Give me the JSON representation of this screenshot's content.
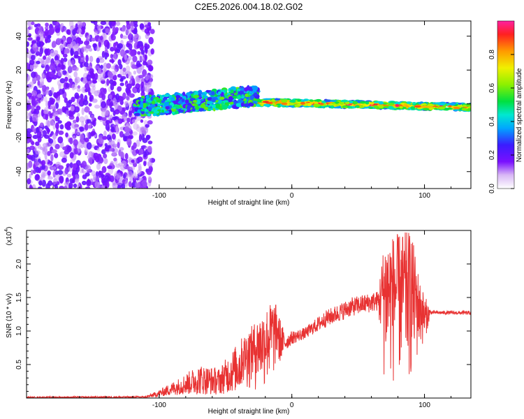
{
  "title": "C2E5.2026.004.18.02.G02",
  "colors": {
    "snr_line": "#e83232",
    "scatter_violet": "#6a00e8",
    "background": "#ffffff",
    "axis": "#000000"
  },
  "chart_data": [
    {
      "type": "heatmap",
      "xlabel": "Height of straight line (km)",
      "ylabel": "Frequency (Hz)",
      "xlim": [
        -200,
        135
      ],
      "ylim": [
        -50,
        49
      ],
      "x_ticks": [
        -100,
        0,
        100
      ],
      "x_tick_labels": [
        "-100",
        "0",
        "100"
      ],
      "y_ticks": [
        -40,
        -20,
        0,
        20,
        40
      ],
      "y_tick_labels": [
        "-40",
        "-20",
        "0",
        "20",
        "40"
      ],
      "colorbar": {
        "label": "Normalized spectral amplitude",
        "range": [
          0,
          1
        ],
        "ticks": [
          0.0,
          0.2,
          0.4,
          0.6,
          0.8
        ],
        "tick_labels": [
          "0.0",
          "0.2",
          "0.4",
          "0.6",
          "0.8"
        ]
      },
      "regions": [
        {
          "name": "noise",
          "x_range": [
            -200,
            -105
          ],
          "freq_range": [
            -50,
            49
          ],
          "amplitude": [
            0.0,
            0.2
          ]
        },
        {
          "name": "scattered-signal",
          "x_range": [
            -118,
            -25
          ],
          "freq_center_start": -2,
          "freq_center_end": 5,
          "amplitude": [
            0.2,
            0.6
          ]
        },
        {
          "name": "stable-signal",
          "x_range": [
            -25,
            135
          ],
          "freq_center_start": 1,
          "freq_center_end": -2,
          "amplitude": [
            0.3,
            1.0
          ]
        }
      ]
    },
    {
      "type": "line",
      "xlabel": "Height of straight line (km)",
      "ylabel": "SNR (10 * v/v)",
      "y_multiplier": "(x10^4)",
      "y_multiplier_base": "(x10",
      "y_multiplier_exp": "4",
      "xlim": [
        -200,
        135
      ],
      "ylim": [
        0,
        2.5
      ],
      "x_ticks": [
        -100,
        0,
        100
      ],
      "x_tick_labels": [
        "-100",
        "0",
        "100"
      ],
      "y_ticks": [
        0.5,
        1.0,
        1.5,
        2.0
      ],
      "y_tick_labels": [
        "0.5",
        "1.0",
        "1.5",
        "2.0"
      ],
      "series": [
        {
          "name": "SNR",
          "envelope": [
            {
              "x": -200,
              "low": 0.0,
              "high": 0.02
            },
            {
              "x": -110,
              "low": 0.0,
              "high": 0.03
            },
            {
              "x": -100,
              "low": 0.02,
              "high": 0.12
            },
            {
              "x": -85,
              "low": 0.05,
              "high": 0.3
            },
            {
              "x": -70,
              "low": 0.05,
              "high": 0.5
            },
            {
              "x": -55,
              "low": 0.05,
              "high": 0.45
            },
            {
              "x": -40,
              "low": 0.1,
              "high": 0.85
            },
            {
              "x": -25,
              "low": 0.05,
              "high": 1.2
            },
            {
              "x": -15,
              "low": 0.05,
              "high": 1.45
            },
            {
              "x": -12,
              "low": 0.4,
              "high": 1.4
            },
            {
              "x": -5,
              "low": 0.7,
              "high": 0.95
            },
            {
              "x": 0,
              "low": 0.8,
              "high": 1.0
            },
            {
              "x": 10,
              "low": 0.88,
              "high": 1.05
            },
            {
              "x": 25,
              "low": 1.05,
              "high": 1.3
            },
            {
              "x": 45,
              "low": 1.22,
              "high": 1.5
            },
            {
              "x": 65,
              "low": 1.3,
              "high": 1.6
            },
            {
              "x": 70,
              "low": 0.1,
              "high": 2.4
            },
            {
              "x": 80,
              "low": 0.1,
              "high": 2.45
            },
            {
              "x": 90,
              "low": 0.1,
              "high": 2.5
            },
            {
              "x": 97,
              "low": 0.6,
              "high": 1.7
            },
            {
              "x": 105,
              "low": 1.25,
              "high": 1.3
            },
            {
              "x": 135,
              "low": 1.24,
              "high": 1.3
            }
          ]
        }
      ]
    }
  ]
}
